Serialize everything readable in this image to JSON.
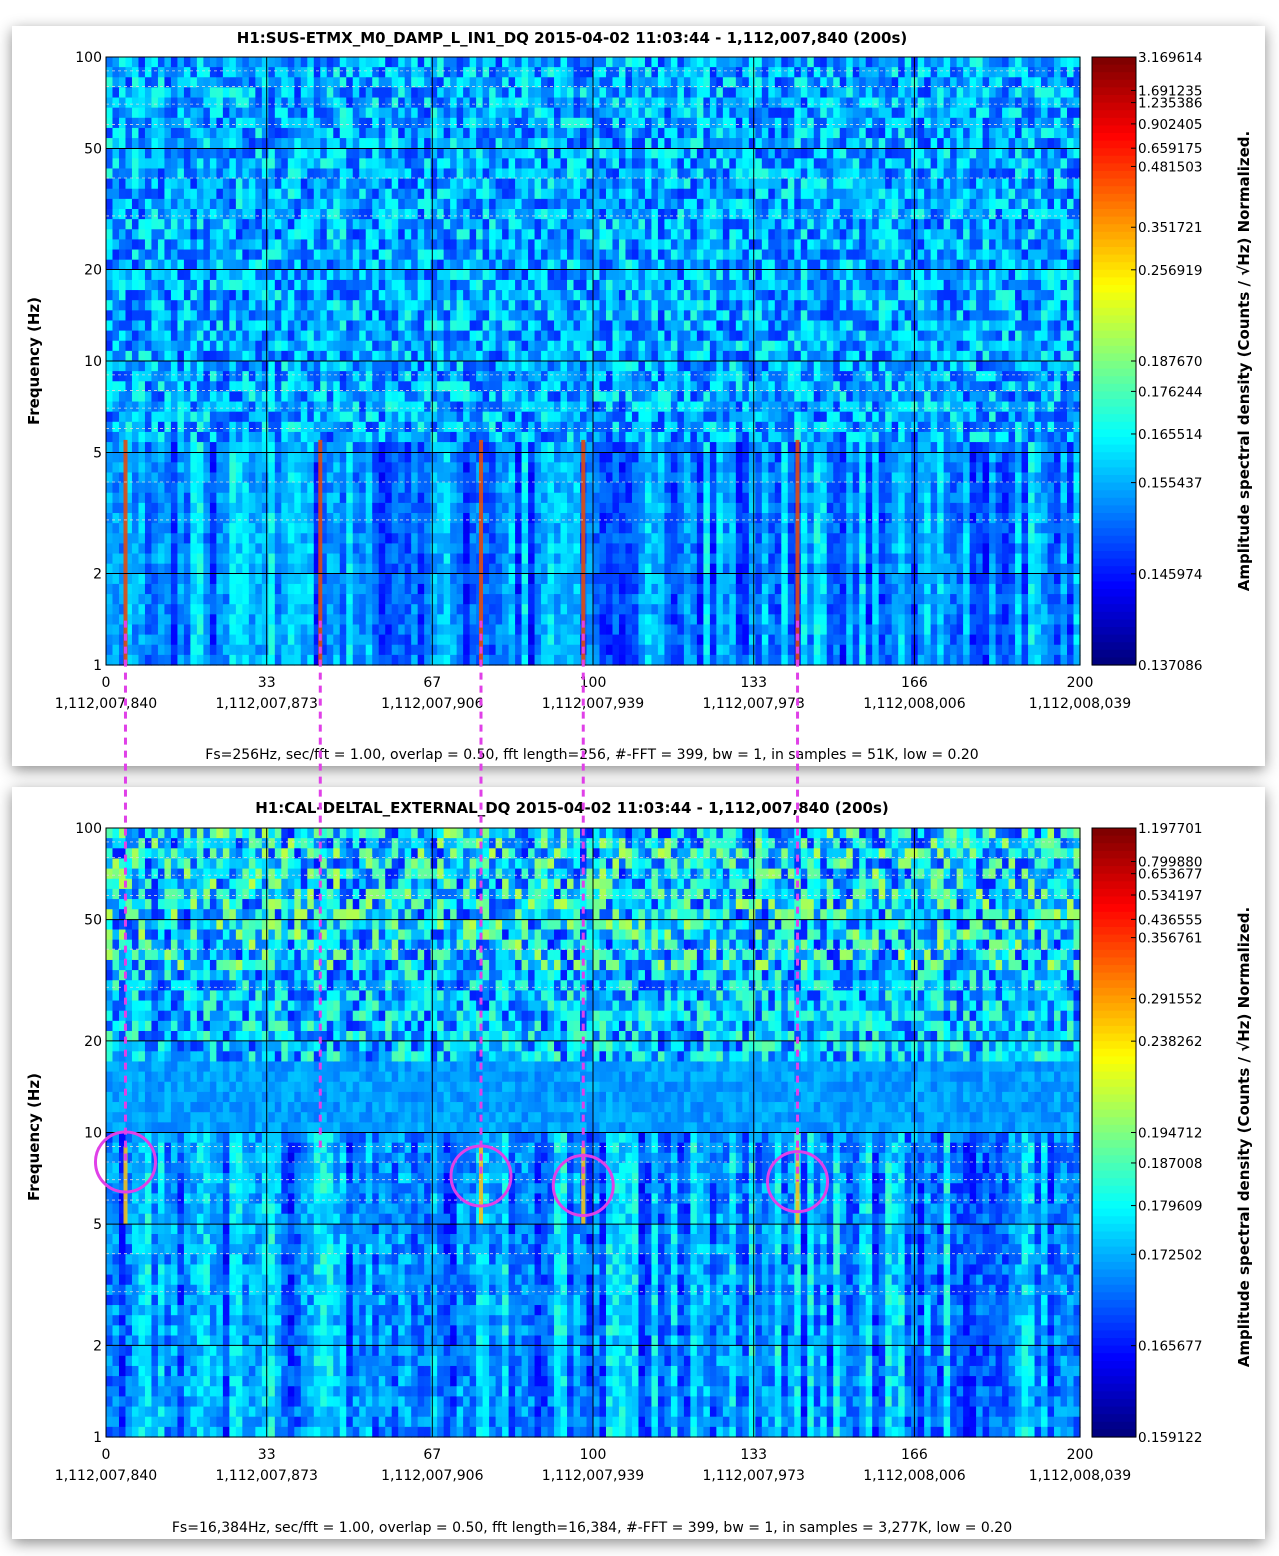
{
  "chart_data": [
    {
      "type": "heatmap",
      "title": "H1:SUS-ETMX_M0_DAMP_L_IN1_DQ 2015-04-02 11:03:44 - 1,112,007,840 (200s)",
      "ylabel": "Frequency (Hz)",
      "yscale": "log",
      "ylim": [
        1,
        100
      ],
      "yticks": [
        "1",
        "2",
        "5",
        "10",
        "20",
        "50",
        "100"
      ],
      "xlim": [
        0,
        200
      ],
      "xticks": [
        "0",
        "33",
        "67",
        "100",
        "133",
        "166",
        "200"
      ],
      "xticks_gps": [
        "1,112,007,840",
        "1,112,007,873",
        "1,112,007,906",
        "1,112,007,939",
        "1,112,007,973",
        "1,112,008,006",
        "1,112,008,039"
      ],
      "colorbar_label": "Amplitude spectral density (Counts / √Hz) Normalized.",
      "colorbar_ticks": [
        "3.169614",
        "1.691235",
        "1.235386",
        "0.902405",
        "0.659175",
        "0.481503",
        "0.351721",
        "0.256919",
        "0.187670",
        "0.176244",
        "0.165514",
        "0.155437",
        "0.145974",
        "0.137086"
      ],
      "footer": "Fs=256Hz, sec/fft = 1.00, overlap = 0.50, fft length=256, #-FFT = 399, bw = 1, in samples = 51K, low = 0.20",
      "transients_x": [
        4,
        44,
        77,
        98,
        142
      ],
      "grid": true
    },
    {
      "type": "heatmap",
      "title": "H1:CAL-DELTAL_EXTERNAL_DQ 2015-04-02 11:03:44 - 1,112,007,840 (200s)",
      "ylabel": "Frequency (Hz)",
      "yscale": "log",
      "ylim": [
        1,
        100
      ],
      "yticks": [
        "1",
        "2",
        "5",
        "10",
        "20",
        "50",
        "100"
      ],
      "xlim": [
        0,
        200
      ],
      "xticks": [
        "0",
        "33",
        "67",
        "100",
        "133",
        "166",
        "200"
      ],
      "xticks_gps": [
        "1,112,007,840",
        "1,112,007,873",
        "1,112,007,906",
        "1,112,007,939",
        "1,112,007,973",
        "1,112,008,006",
        "1,112,008,039"
      ],
      "colorbar_label": "Amplitude spectral density (Counts / √Hz) Normalized.",
      "colorbar_ticks": [
        "1.197701",
        "0.799880",
        "0.653677",
        "0.534197",
        "0.436555",
        "0.356761",
        "0.291552",
        "0.238262",
        "0.194712",
        "0.187008",
        "0.179609",
        "0.172502",
        "0.165677",
        "0.159122"
      ],
      "footer": "Fs=16,384Hz, sec/fft = 1.00, overlap = 0.50, fft length=16,384, #-FFT = 399, bw = 1, in samples = 3,277K, low = 0.20",
      "circled_x": [
        4,
        77,
        98,
        142
      ],
      "circled_freq_hz": [
        8,
        7.2,
        6.7,
        6.9
      ],
      "grid": true
    }
  ],
  "annotation_color": "#e040e8",
  "colormap": "jet"
}
